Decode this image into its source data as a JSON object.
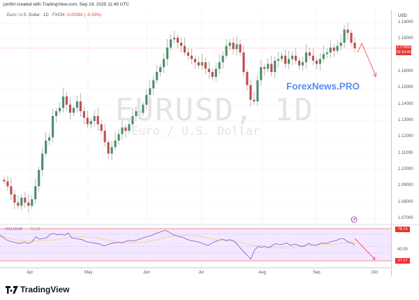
{
  "header": {
    "credit": "jonfinl created with TradingView.com, Sep 19, 2025 11:49 UTC",
    "symbol_desc": "Euro / U.S. Dollar · 1D · FXCM",
    "change": "−0.00392 (−0.33%)"
  },
  "watermark": {
    "symbol": "EURUSD, 1D",
    "name": "Euro / U.S. Dollar"
  },
  "overlay_text": "ForexNews.PRO",
  "price_axis": {
    "currency": "USD",
    "ticks": [
      "1.19000",
      "1.18000",
      "1.16000",
      "1.15000",
      "1.14000",
      "1.13000",
      "1.12000",
      "1.11000",
      "1.10000",
      "1.09000",
      "1.08000",
      "1.07000"
    ],
    "last_price": "1.17459",
    "countdown": "09:10:40",
    "last_price_color": "#e53935"
  },
  "time_axis": {
    "ticks": [
      "Apr",
      "May",
      "Jun",
      "Jul",
      "Aug",
      "Sep",
      "Oct"
    ]
  },
  "rsi": {
    "label": "RSI",
    "value": "53.06",
    "ma_value": "",
    "extra": "57.92",
    "upper_tag": "78.74",
    "lower_tag": "27.17",
    "mid_label": "40.00",
    "line_color": "#7e57c2",
    "ma_color": "#f7c948"
  },
  "brand": {
    "name": "TradingView"
  },
  "colors": {
    "up": "#4f8f6e",
    "down": "#c0504d",
    "arrow": "#f23645"
  },
  "chart_data": {
    "type": "candlestick",
    "title": "EURUSD, 1D — Euro / U.S. Dollar (FXCM)",
    "xlabel": "",
    "ylabel": "USD",
    "ylim": [
      1.065,
      1.195
    ],
    "x_ticks": [
      "Apr",
      "May",
      "Jun",
      "Jul",
      "Aug",
      "Sep",
      "Oct"
    ],
    "y_ticks": [
      1.07,
      1.08,
      1.09,
      1.1,
      1.11,
      1.12,
      1.13,
      1.14,
      1.15,
      1.16,
      1.17,
      1.18,
      1.19
    ],
    "last_close": 1.17459,
    "change": -0.00392,
    "change_pct": -0.33,
    "approx_path": [
      {
        "period": "mid-Mar",
        "close": 1.09
      },
      {
        "period": "late-Mar",
        "close": 1.078
      },
      {
        "period": "early-Apr",
        "close": 1.095
      },
      {
        "period": "mid-Apr",
        "close": 1.135
      },
      {
        "period": "late-Apr",
        "close": 1.14
      },
      {
        "period": "early-May",
        "close": 1.13
      },
      {
        "period": "mid-May",
        "close": 1.118
      },
      {
        "period": "late-May",
        "close": 1.135
      },
      {
        "period": "early-Jun",
        "close": 1.145
      },
      {
        "period": "mid-Jun",
        "close": 1.16
      },
      {
        "period": "end-Jun",
        "close": 1.178
      },
      {
        "period": "mid-Jul",
        "close": 1.165
      },
      {
        "period": "late-Jul",
        "close": 1.175
      },
      {
        "period": "end-Jul",
        "close": 1.142
      },
      {
        "period": "early-Aug",
        "close": 1.16
      },
      {
        "period": "mid-Aug",
        "close": 1.168
      },
      {
        "period": "late-Aug",
        "close": 1.165
      },
      {
        "period": "early-Sep",
        "close": 1.172
      },
      {
        "period": "mid-Sep",
        "close": 1.186
      },
      {
        "period": "Sep 19",
        "close": 1.17459
      }
    ],
    "annotations": [
      "red forecast arrow pointing down from ~1.176 to ~1.157 (late Sep)",
      "red forecast arrow on RSI pointing down toward 27.17"
    ],
    "rsi": {
      "current": 53.06,
      "upper_band": 78.74,
      "lower_band": 27.17,
      "mid": 40.0
    }
  }
}
